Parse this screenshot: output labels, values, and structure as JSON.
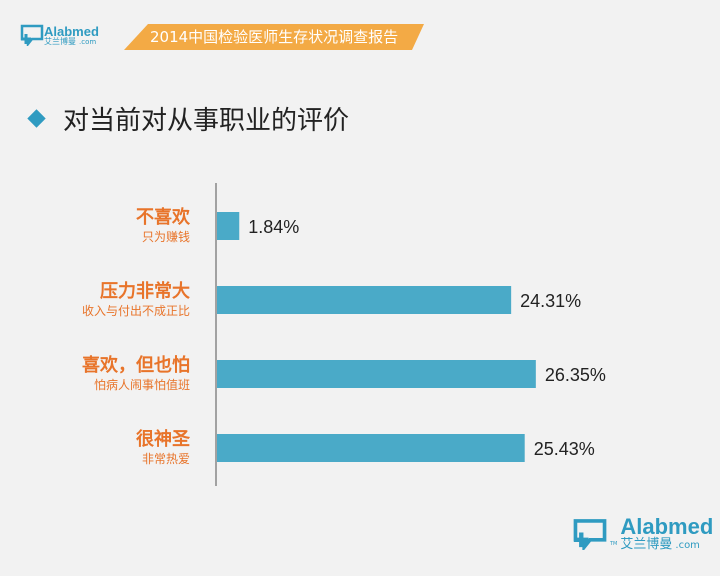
{
  "header": {
    "logo_en": "Alabmed",
    "logo_cn": "艾兰博曼",
    "logo_com": ".com",
    "banner": "2014中国检验医师生存状况调查报告"
  },
  "title": "对当前对从事职业的评价",
  "footer": {
    "logo_en": "Alabmed",
    "logo_cn": "艾兰博曼",
    "logo_com": ".com",
    "tm": "TM"
  },
  "colors": {
    "bar": "#4aaac8",
    "label": "#e8742a",
    "axis": "#888888"
  },
  "chart_data": {
    "type": "bar",
    "orientation": "horizontal",
    "categories": [
      "不喜欢",
      "压力非常大",
      "喜欢，但也怕",
      "很神圣"
    ],
    "subcategories": [
      "只为赚钱",
      "收入与付出不成正比",
      "怕病人闹事怕值班",
      "非常热爱"
    ],
    "values": [
      1.84,
      24.31,
      26.35,
      25.43
    ],
    "value_labels": [
      "1.84%",
      "24.31%",
      "26.35%",
      "25.43%"
    ],
    "xlim": [
      0,
      30
    ]
  }
}
